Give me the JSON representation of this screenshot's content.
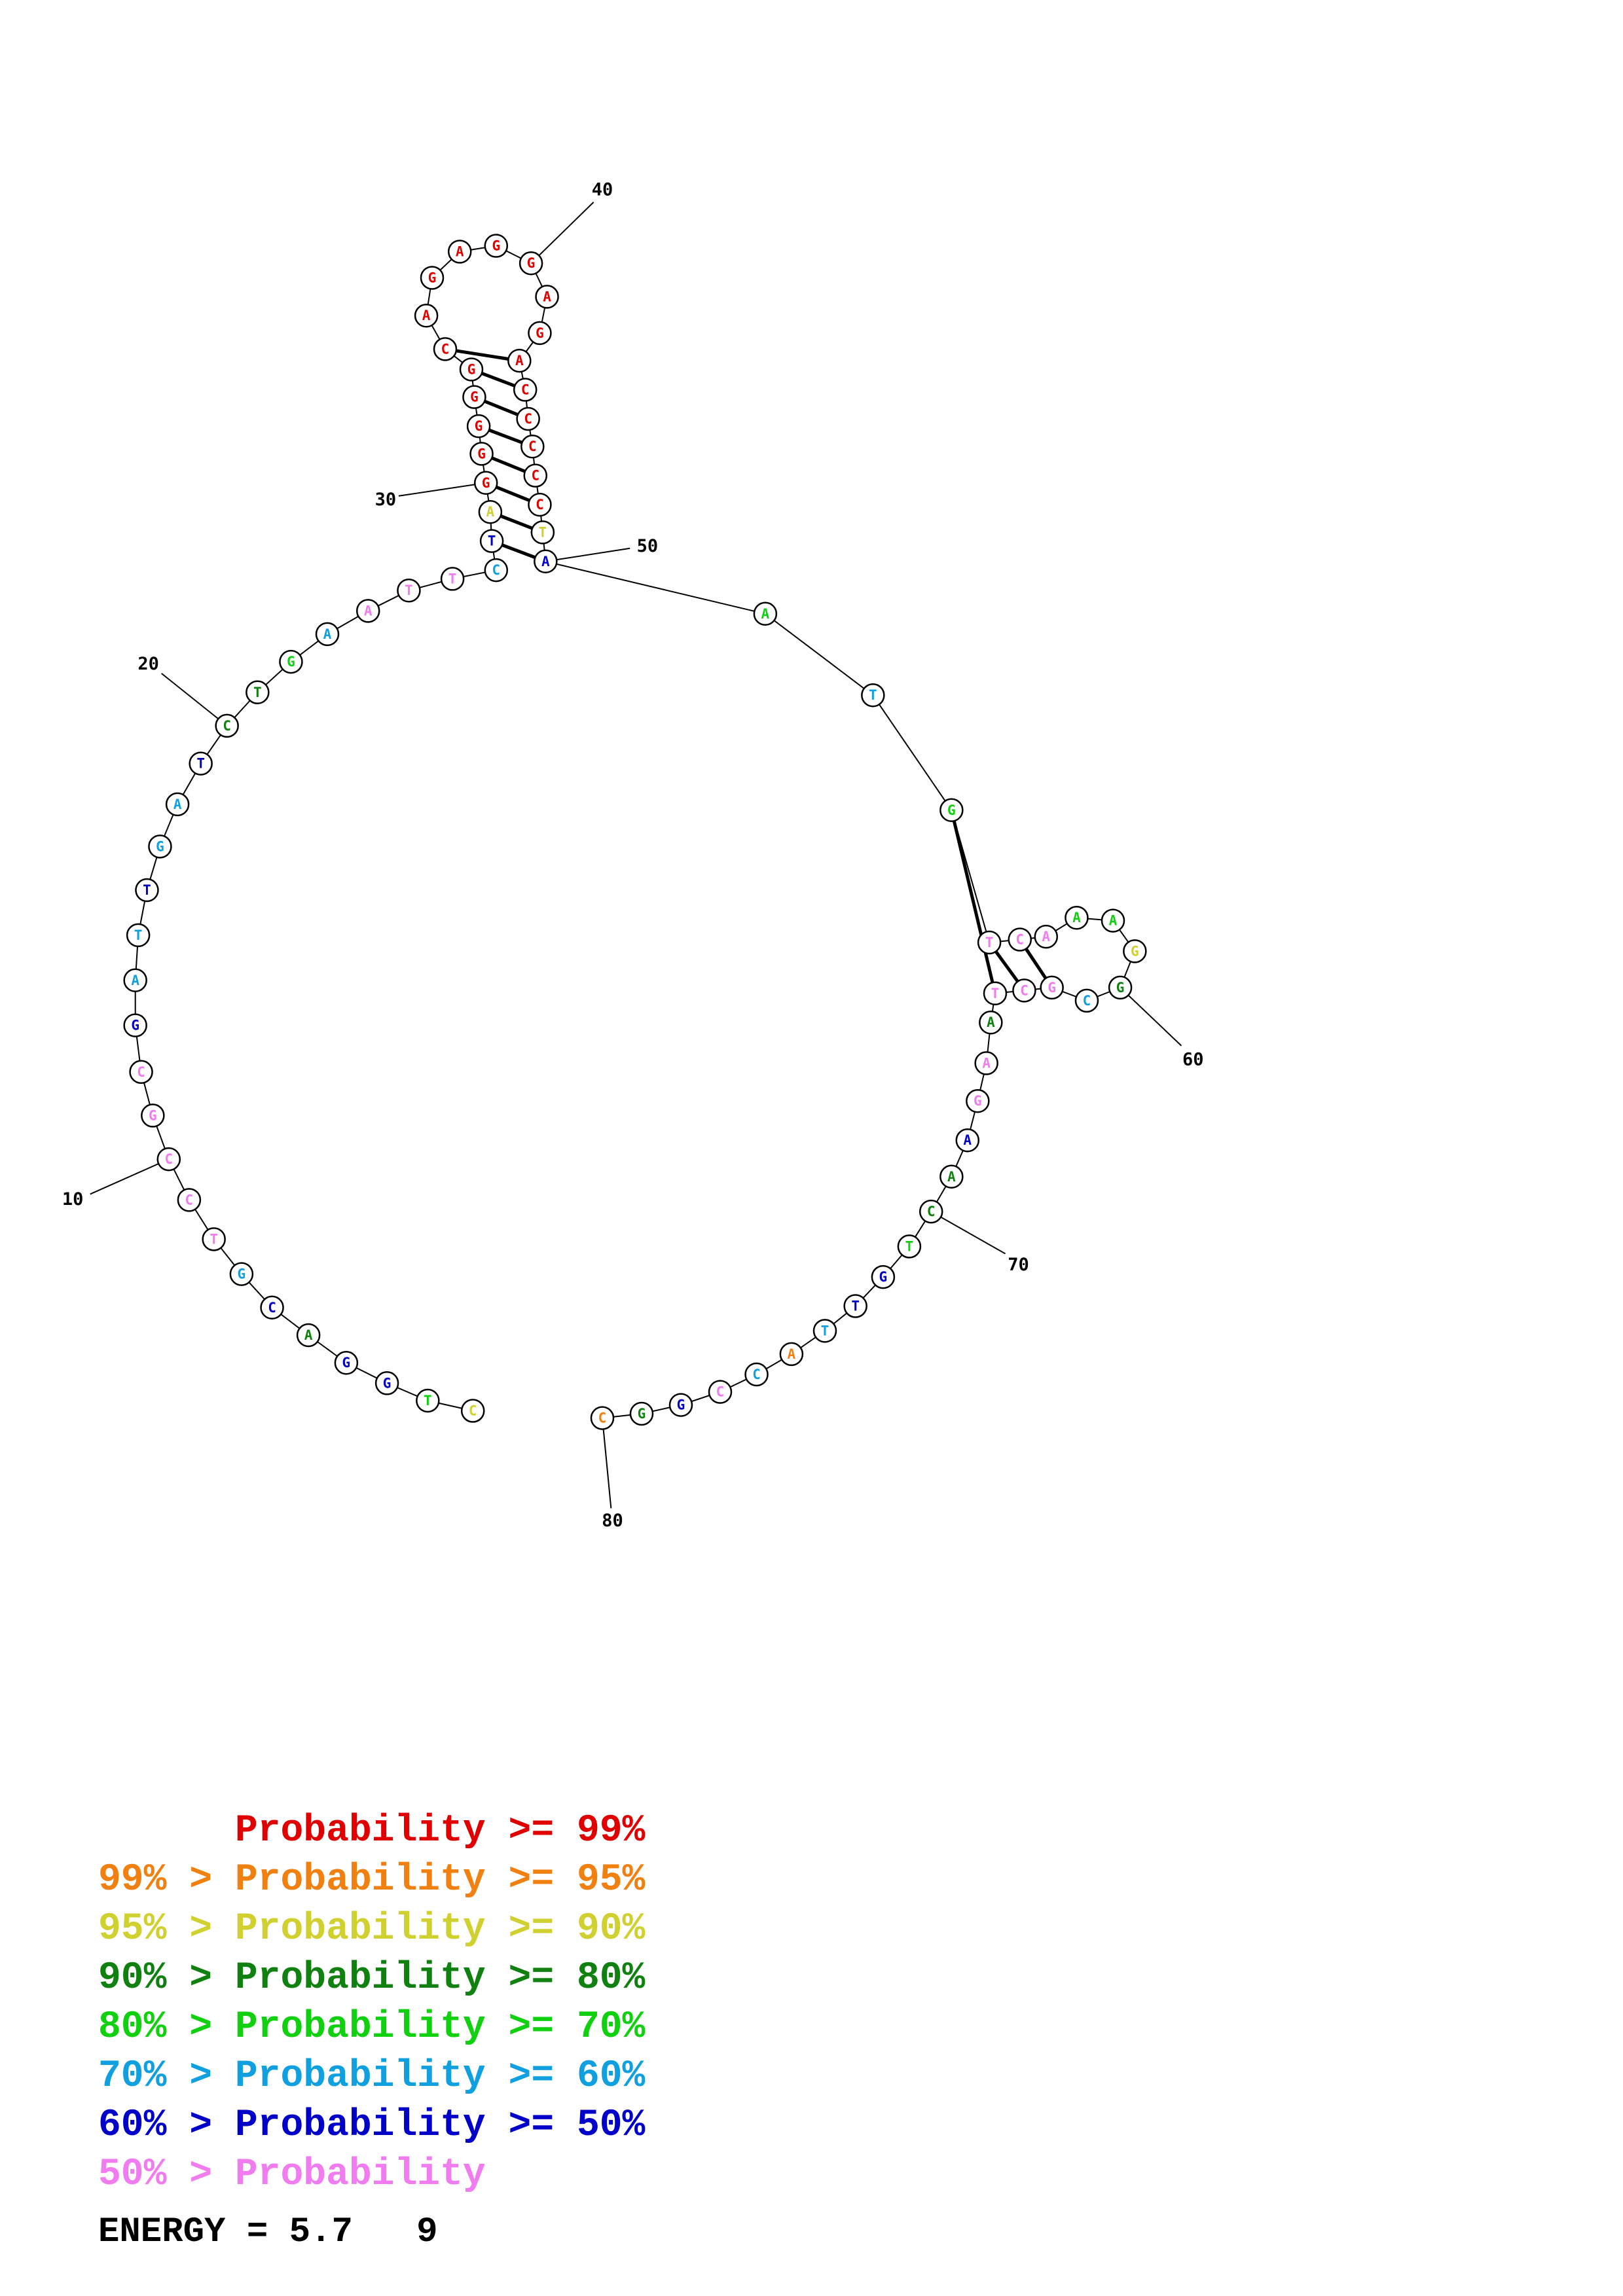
{
  "structure": {
    "sequence_letters": [
      "C",
      "T",
      "G",
      "G",
      "A",
      "C",
      "G",
      "T",
      "C",
      "C",
      "G",
      "C",
      "G",
      "A",
      "T",
      "T",
      "G",
      "A",
      "T",
      "C",
      "T",
      "G",
      "A",
      "A",
      "T",
      "T",
      "C",
      "T",
      "A",
      "G",
      "G",
      "G",
      "G",
      "G",
      "C",
      "A",
      "G",
      "A",
      "G",
      "G",
      "A",
      "G",
      "A",
      "C",
      "C",
      "C",
      "C",
      "C",
      "T",
      "A",
      "A",
      "T",
      "G",
      "T",
      "C",
      "A",
      "A",
      "A",
      "G",
      "G",
      "C",
      "G",
      "C",
      "T",
      "A",
      "A",
      "G",
      "A",
      "A",
      "C",
      "T",
      "G",
      "T",
      "T",
      "A",
      "C",
      "C",
      "G",
      "G",
      "C"
    ],
    "nucleotide_colors": [
      "#d0d030",
      "#10d010",
      "#0000c8",
      "#0000c8",
      "#108010",
      "#0000c8",
      "#10a0e0",
      "#f07cf0",
      "#f07cf0",
      "#f07cf0",
      "#f07cf0",
      "#f07cf0",
      "#0000c8",
      "#10a0e0",
      "#10a0e0",
      "#0000c8",
      "#10a0e0",
      "#10a0e0",
      "#0000c8",
      "#108010",
      "#108010",
      "#10d010",
      "#10a0e0",
      "#f07cf0",
      "#f07cf0",
      "#f07cf0",
      "#10a0e0",
      "#0000c8",
      "#d0d030",
      "#e00000",
      "#e00000",
      "#e00000",
      "#e00000",
      "#e00000",
      "#e00000",
      "#e00000",
      "#e00000",
      "#e00000",
      "#e00000",
      "#e00000",
      "#e00000",
      "#e00000",
      "#e00000",
      "#e00000",
      "#e00000",
      "#e00000",
      "#e00000",
      "#e00000",
      "#d0d030",
      "#0000c8",
      "#10d010",
      "#10a0e0",
      "#10d010",
      "#f07cf0",
      "#f07cf0",
      "#f07cf0",
      "#10d010",
      "#10d010",
      "#d0d030",
      "#108010",
      "#10a0e0",
      "#f07cf0",
      "#f07cf0",
      "#f07cf0",
      "#108010",
      "#f07cf0",
      "#f07cf0",
      "#0000c8",
      "#108010",
      "#108010",
      "#10d010",
      "#0000c8",
      "#0000c8",
      "#10a0e0",
      "#f08010",
      "#10a0e0",
      "#f07cf0",
      "#0000c8",
      "#108010",
      "#f08010"
    ],
    "base_pairs": [
      [
        28,
        50
      ],
      [
        29,
        49
      ],
      [
        30,
        48
      ],
      [
        31,
        47
      ],
      [
        32,
        46
      ],
      [
        33,
        45
      ],
      [
        34,
        44
      ],
      [
        35,
        43
      ],
      [
        53,
        64
      ],
      [
        54,
        63
      ],
      [
        55,
        62
      ]
    ],
    "position_labels": [
      {
        "index": 10,
        "text": "10"
      },
      {
        "index": 20,
        "text": "20"
      },
      {
        "index": 30,
        "text": "30"
      },
      {
        "index": 40,
        "text": "40"
      },
      {
        "index": 50,
        "text": "50"
      },
      {
        "index": 60,
        "text": "60"
      },
      {
        "index": 70,
        "text": "70"
      },
      {
        "index": 80,
        "text": "80"
      }
    ]
  },
  "legend": {
    "rows": [
      {
        "prefix": "",
        "label": "Probability",
        "suffix": ">= 99%",
        "color": "#e00000"
      },
      {
        "prefix": "99% > ",
        "label": "Probability",
        "suffix": ">= 95%",
        "color": "#f08010"
      },
      {
        "prefix": "95% > ",
        "label": "Probability",
        "suffix": ">= 90%",
        "color": "#d0d030"
      },
      {
        "prefix": "90% > ",
        "label": "Probability",
        "suffix": ">= 80%",
        "color": "#108010"
      },
      {
        "prefix": "80% > ",
        "label": "Probability",
        "suffix": ">= 70%",
        "color": "#10d010"
      },
      {
        "prefix": "70% > ",
        "label": "Probability",
        "suffix": ">= 60%",
        "color": "#10a0e0"
      },
      {
        "prefix": "60% > ",
        "label": "Probability",
        "suffix": ">= 50%",
        "color": "#0000c8"
      },
      {
        "prefix": "50% > ",
        "label": "Probability",
        "suffix": "",
        "color": "#f07cf0"
      }
    ]
  },
  "energy": {
    "text": "ENERGY = 5.7   9"
  }
}
